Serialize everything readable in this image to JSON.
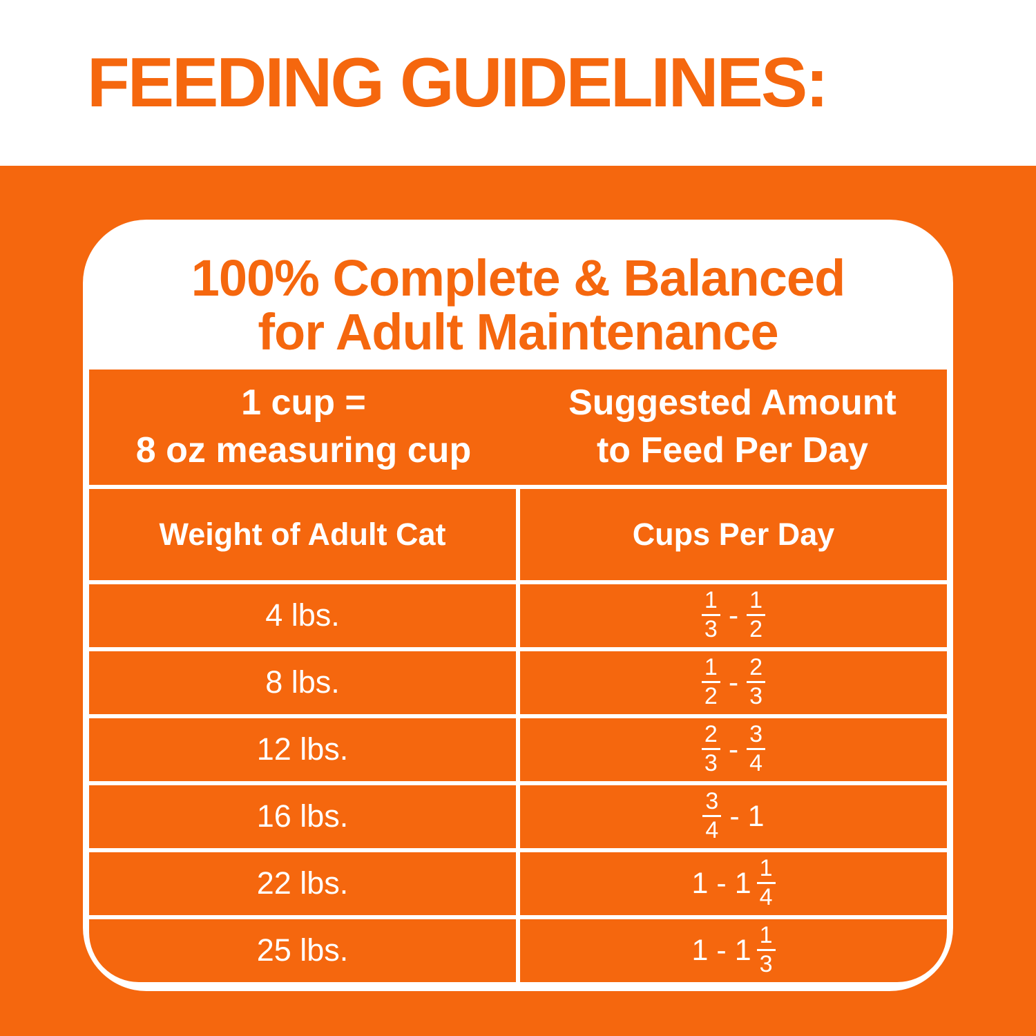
{
  "colors": {
    "orange": "#F5670E",
    "white": "#FFFFFF"
  },
  "header": {
    "title": "FEEDING GUIDELINES:"
  },
  "card": {
    "title_line1": "100% Complete & Balanced",
    "title_line2": "for Adult Maintenance"
  },
  "table": {
    "header_left_line1": "1 cup =",
    "header_left_line2": "8 oz measuring cup",
    "header_right_line1": "Suggested Amount",
    "header_right_line2": "to Feed Per Day",
    "col1_header": "Weight of Adult Cat",
    "col2_header": "Cups Per Day",
    "range_separator": "-",
    "rows": [
      {
        "weight": "4 lbs.",
        "range": [
          {
            "num": "1",
            "den": "3"
          },
          {
            "num": "1",
            "den": "2"
          }
        ]
      },
      {
        "weight": "8 lbs.",
        "range": [
          {
            "num": "1",
            "den": "2"
          },
          {
            "num": "2",
            "den": "3"
          }
        ]
      },
      {
        "weight": "12 lbs.",
        "range": [
          {
            "num": "2",
            "den": "3"
          },
          {
            "num": "3",
            "den": "4"
          }
        ]
      },
      {
        "weight": "16 lbs.",
        "range": [
          {
            "num": "3",
            "den": "4"
          },
          {
            "whole": "1"
          }
        ]
      },
      {
        "weight": "22 lbs.",
        "range": [
          {
            "whole": "1"
          },
          {
            "whole": "1",
            "num": "1",
            "den": "4"
          }
        ]
      },
      {
        "weight": "25 lbs.",
        "range": [
          {
            "whole": "1"
          },
          {
            "whole": "1",
            "num": "1",
            "den": "3"
          }
        ]
      }
    ]
  }
}
